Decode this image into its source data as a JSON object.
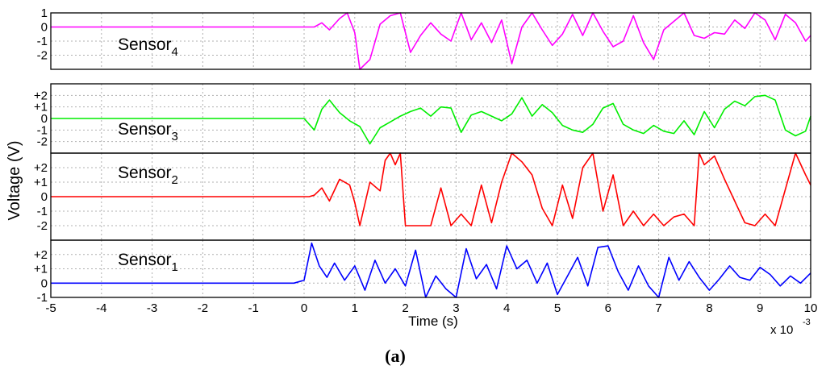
{
  "chart_data": {
    "type": "line",
    "ylabel": "Voltage (V)",
    "xlabel": "Time (s)",
    "x_multiplier": "x 10",
    "x_multiplier_exp": "-3",
    "caption": "(a)",
    "xlim": [
      -5,
      10
    ],
    "xticks": [
      "-5",
      "-4",
      "-3",
      "-2",
      "-1",
      "0",
      "1",
      "2",
      "3",
      "4",
      "5",
      "6",
      "7",
      "8",
      "9",
      "10"
    ],
    "grid": true,
    "panels": [
      {
        "name": "Sensor",
        "sub": "4",
        "color": "#ff00ff",
        "ylim": [
          -3,
          1
        ],
        "yticks": [
          "1",
          "0",
          "-1",
          "-2"
        ],
        "ytick_values": [
          1,
          0,
          -1,
          -2
        ],
        "x": [
          -5,
          -0.1,
          0.2,
          0.35,
          0.5,
          0.7,
          0.85,
          1.0,
          1.1,
          1.3,
          1.5,
          1.7,
          1.9,
          2.1,
          2.3,
          2.5,
          2.7,
          2.9,
          3.1,
          3.3,
          3.5,
          3.7,
          3.9,
          4.1,
          4.3,
          4.5,
          4.7,
          4.9,
          5.1,
          5.3,
          5.5,
          5.7,
          5.9,
          6.1,
          6.3,
          6.5,
          6.7,
          6.9,
          7.1,
          7.3,
          7.5,
          7.7,
          7.9,
          8.1,
          8.3,
          8.5,
          8.7,
          8.9,
          9.1,
          9.3,
          9.5,
          9.7,
          9.9,
          10.0
        ],
        "y": [
          0,
          0,
          0,
          0.3,
          -0.2,
          0.6,
          1.0,
          -0.4,
          -3.0,
          -2.3,
          0.2,
          0.8,
          1.0,
          -1.8,
          -0.6,
          0.3,
          -0.5,
          -1.0,
          1.0,
          -0.9,
          0.3,
          -1.1,
          0.5,
          -2.6,
          0.0,
          1.0,
          -0.2,
          -1.3,
          -0.5,
          0.9,
          -0.6,
          1.0,
          -0.3,
          -1.4,
          -1.0,
          0.8,
          -1.1,
          -2.3,
          -0.2,
          0.4,
          1.0,
          -0.6,
          -0.8,
          -0.4,
          -0.5,
          0.5,
          -0.1,
          1.0,
          0.5,
          -0.9,
          0.9,
          0.3,
          -1.0,
          -0.6
        ]
      },
      {
        "name": "Sensor",
        "sub": "3",
        "color": "#00ee00",
        "ylim": [
          -3,
          3
        ],
        "yticks": [
          "+2",
          "+1",
          "0",
          "-1",
          "-2"
        ],
        "ytick_values": [
          2,
          1,
          0,
          -1,
          -2
        ],
        "x": [
          -5,
          0.0,
          0.1,
          0.2,
          0.35,
          0.5,
          0.7,
          0.9,
          1.1,
          1.3,
          1.5,
          1.7,
          1.9,
          2.1,
          2.3,
          2.5,
          2.7,
          2.9,
          3.1,
          3.3,
          3.5,
          3.7,
          3.9,
          4.1,
          4.3,
          4.5,
          4.7,
          4.9,
          5.1,
          5.3,
          5.5,
          5.7,
          5.9,
          6.1,
          6.3,
          6.5,
          6.7,
          6.9,
          7.1,
          7.3,
          7.5,
          7.7,
          7.9,
          8.1,
          8.3,
          8.5,
          8.7,
          8.9,
          9.1,
          9.3,
          9.5,
          9.7,
          9.9,
          10.0
        ],
        "y": [
          0,
          0,
          -0.5,
          -1.0,
          0.8,
          1.6,
          0.5,
          -0.2,
          -0.7,
          -2.2,
          -0.8,
          -0.3,
          0.2,
          0.6,
          0.9,
          0.2,
          1.0,
          0.9,
          -1.2,
          0.3,
          0.6,
          0.2,
          -0.2,
          0.4,
          1.8,
          0.2,
          1.2,
          0.5,
          -0.6,
          -1.0,
          -1.2,
          -0.5,
          0.9,
          1.3,
          -0.5,
          -1.0,
          -1.3,
          -0.6,
          -1.1,
          -1.3,
          -0.2,
          -1.4,
          0.6,
          -0.8,
          0.8,
          1.5,
          1.1,
          1.9,
          2.0,
          1.6,
          -1.0,
          -1.5,
          -1.1,
          0.2
        ]
      },
      {
        "name": "Sensor",
        "sub": "2",
        "color": "#ff0000",
        "ylim": [
          -3,
          3
        ],
        "yticks": [
          "+2",
          "+1",
          "0",
          "-1",
          "-2"
        ],
        "ytick_values": [
          2,
          1,
          0,
          -1,
          -2
        ],
        "x": [
          -5,
          0.1,
          0.2,
          0.35,
          0.5,
          0.7,
          0.9,
          1.0,
          1.1,
          1.3,
          1.5,
          1.6,
          1.7,
          1.8,
          1.9,
          2.0,
          2.05,
          2.3,
          2.5,
          2.7,
          2.9,
          3.1,
          3.3,
          3.5,
          3.7,
          3.9,
          4.1,
          4.3,
          4.5,
          4.7,
          4.9,
          5.1,
          5.3,
          5.5,
          5.7,
          5.9,
          6.1,
          6.3,
          6.5,
          6.7,
          6.9,
          7.1,
          7.3,
          7.5,
          7.7,
          7.8,
          7.9,
          8.1,
          8.3,
          8.5,
          8.7,
          8.9,
          9.1,
          9.3,
          9.5,
          9.7,
          9.9,
          10.0
        ],
        "y": [
          0,
          0,
          0.1,
          0.6,
          -0.3,
          1.2,
          0.8,
          -0.4,
          -2.0,
          1.0,
          0.4,
          2.5,
          3.0,
          2.2,
          3.0,
          -2.0,
          -2.0,
          -2.0,
          -2.0,
          0.6,
          -2.0,
          -1.2,
          -2.0,
          0.8,
          -1.8,
          1.0,
          3.0,
          2.4,
          1.5,
          -0.8,
          -2.0,
          0.8,
          -1.5,
          2.0,
          3.0,
          -1.0,
          1.5,
          -2.0,
          -1.0,
          -2.0,
          -1.2,
          -2.0,
          -1.4,
          -1.2,
          -2.0,
          3.0,
          2.2,
          2.8,
          1.2,
          -0.3,
          -1.8,
          -2.0,
          -1.2,
          -2.0,
          0.5,
          3.0,
          1.5,
          0.8
        ]
      },
      {
        "name": "Sensor",
        "sub": "1",
        "color": "#0000ff",
        "ylim": [
          -1,
          3
        ],
        "yticks": [
          "+2",
          "+1",
          "0",
          "-1"
        ],
        "ytick_values": [
          2,
          1,
          0,
          -1
        ],
        "x": [
          -5,
          -0.2,
          0.0,
          0.15,
          0.3,
          0.45,
          0.6,
          0.8,
          1.0,
          1.2,
          1.4,
          1.6,
          1.8,
          2.0,
          2.2,
          2.4,
          2.6,
          2.8,
          3.0,
          3.2,
          3.4,
          3.6,
          3.8,
          4.0,
          4.2,
          4.4,
          4.6,
          4.8,
          5.0,
          5.2,
          5.4,
          5.6,
          5.8,
          6.0,
          6.2,
          6.4,
          6.6,
          6.8,
          7.0,
          7.2,
          7.4,
          7.6,
          7.8,
          8.0,
          8.2,
          8.4,
          8.6,
          8.8,
          9.0,
          9.2,
          9.4,
          9.6,
          9.8,
          10.0
        ],
        "y": [
          0,
          0,
          0.2,
          2.8,
          1.2,
          0.4,
          1.4,
          0.2,
          1.2,
          -0.5,
          1.6,
          0.0,
          1.0,
          -0.2,
          2.3,
          -1.0,
          0.5,
          -0.4,
          -1.0,
          2.4,
          0.3,
          1.3,
          -0.4,
          2.6,
          1.0,
          1.6,
          0.0,
          1.4,
          -0.8,
          0.5,
          1.8,
          -0.2,
          2.5,
          2.6,
          0.8,
          -0.5,
          1.2,
          -0.2,
          -1.0,
          1.8,
          0.2,
          1.5,
          0.4,
          -0.5,
          0.3,
          1.2,
          0.4,
          0.2,
          1.1,
          0.6,
          -0.2,
          0.5,
          0.0,
          0.7
        ]
      }
    ]
  }
}
